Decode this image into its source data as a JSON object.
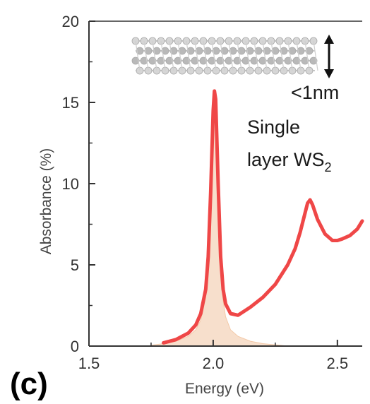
{
  "panel_label": "(c)",
  "colors": {
    "curve": "#ef4747",
    "fill": "#f7dfcc",
    "axis": "#333333",
    "text": "#1a1a1a"
  },
  "chart_data": {
    "type": "line",
    "xlabel": "Energy (eV)",
    "ylabel": "Absorbance (%)",
    "xlim": [
      1.5,
      2.6
    ],
    "ylim": [
      0,
      20
    ],
    "x_ticks": [
      "1.5",
      "2.0",
      "2.5"
    ],
    "y_ticks": [
      "0",
      "5",
      "10",
      "15",
      "20"
    ],
    "grid": false,
    "annotations": {
      "thickness": "<1nm",
      "material_line1": "Single",
      "material_line2": "layer WS",
      "material_subscript": "2"
    },
    "series": [
      {
        "x": [
          1.8,
          1.85,
          1.9,
          1.93,
          1.95,
          1.97,
          1.98,
          1.99,
          2.0,
          2.005,
          2.01,
          2.02,
          2.03,
          2.04,
          2.05,
          2.07,
          2.1,
          2.15,
          2.2,
          2.25,
          2.3,
          2.33,
          2.35,
          2.37,
          2.38,
          2.39,
          2.4,
          2.42,
          2.45,
          2.48,
          2.5,
          2.52,
          2.55,
          2.58,
          2.6
        ],
        "y": [
          0.2,
          0.4,
          0.8,
          1.3,
          2.0,
          3.5,
          5.5,
          9.5,
          14.5,
          15.7,
          15.2,
          10.0,
          5.5,
          3.5,
          2.6,
          2.0,
          1.9,
          2.4,
          3.0,
          3.8,
          5.0,
          6.0,
          7.0,
          8.2,
          8.8,
          9.0,
          8.7,
          7.8,
          6.9,
          6.5,
          6.5,
          6.6,
          6.8,
          7.2,
          7.7
        ]
      },
      {
        "x": [
          1.75,
          1.8,
          1.85,
          1.9,
          1.93,
          1.95,
          1.97,
          1.98,
          1.99,
          2.0,
          2.005,
          2.01,
          2.02,
          2.03,
          2.04,
          2.05,
          2.07,
          2.1,
          2.15,
          2.2,
          2.25,
          2.3
        ],
        "y": [
          0.05,
          0.15,
          0.3,
          0.6,
          1.0,
          1.6,
          3.0,
          5.0,
          9.0,
          14.0,
          15.3,
          14.8,
          9.5,
          4.8,
          2.8,
          1.8,
          1.0,
          0.6,
          0.3,
          0.15,
          0.08,
          0.0
        ]
      }
    ]
  }
}
